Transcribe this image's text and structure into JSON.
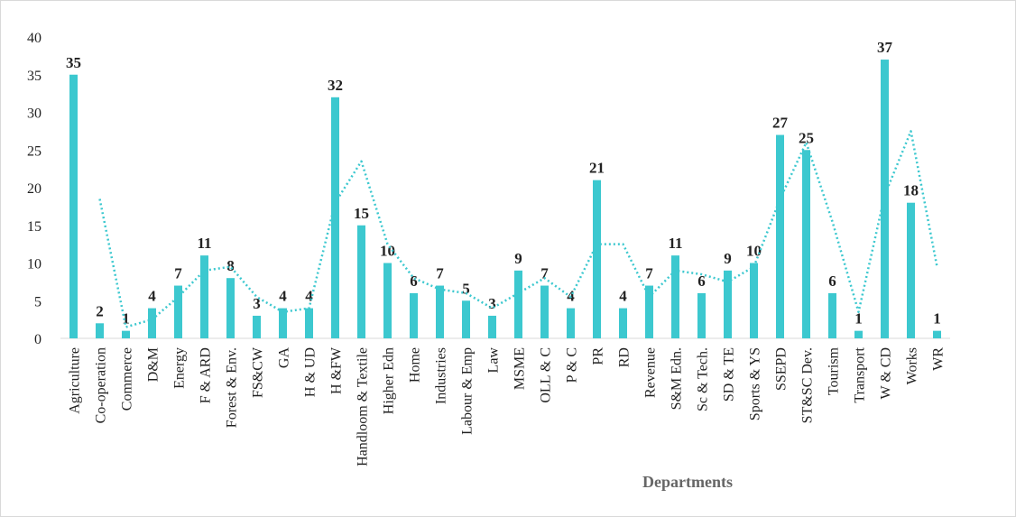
{
  "chart_data": {
    "type": "bar",
    "x_label": "Departments",
    "categories": [
      "Agriculture",
      "Co-operation",
      "Commerce",
      "D&M",
      "Energy",
      "F & ARD",
      "Forest & Env.",
      "FS&CW",
      "GA",
      "H & UD",
      "H &FW",
      "Handloom & Textile",
      "Higher Edn",
      "Home",
      "Industries",
      "Labour & Emp",
      "Law",
      "MSME",
      "OLL & C",
      "P & C",
      "PR",
      "RD",
      "Revenue",
      "S&M Edn.",
      "Sc & Tech.",
      "SD & TE",
      "Sports & YS",
      "SSEPD",
      "ST&SC Dev.",
      "Tourism",
      "Transport",
      "W & CD",
      "Works",
      "WR"
    ],
    "series": [
      {
        "color": "#3cc8cf",
        "style": "bar",
        "values": [
          35,
          2,
          1,
          4,
          7,
          11,
          8,
          3,
          4,
          4,
          32,
          15,
          10,
          6,
          7,
          5,
          3,
          9,
          7,
          4,
          21,
          4,
          7,
          11,
          6,
          9,
          10,
          27,
          25,
          6,
          1,
          37,
          18,
          1
        ]
      },
      {
        "color": "#3cc8cf",
        "style": "dotted",
        "values": [
          null,
          18.5,
          1.5,
          2.5,
          5.5,
          9,
          9.5,
          5.5,
          3.5,
          4,
          18,
          23.5,
          12.5,
          8,
          6.5,
          6,
          4,
          6,
          8,
          5.5,
          12.5,
          12.5,
          5.5,
          9,
          8.5,
          7.5,
          9.5,
          18.5,
          26,
          15.5,
          3.5,
          19,
          27.5,
          9.5
        ]
      }
    ],
    "ylim": [
      0,
      40
    ],
    "yticks": [
      0,
      5,
      10,
      15,
      20,
      25,
      30,
      35,
      40
    ],
    "grid": false
  }
}
